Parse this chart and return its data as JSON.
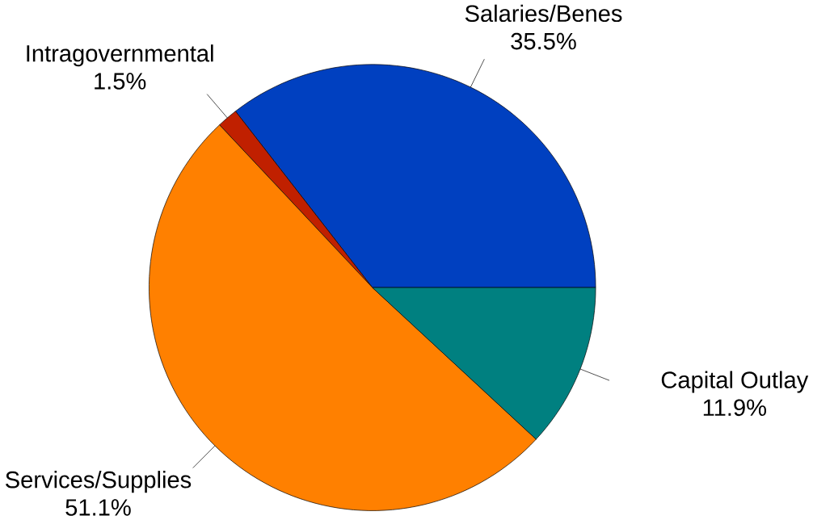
{
  "chart_data": {
    "type": "pie",
    "categories": [
      "Salaries/Benes",
      "Intragovernmental",
      "Services/Supplies",
      "Capital Outlay"
    ],
    "values": [
      35.5,
      1.5,
      51.1,
      11.9
    ],
    "value_labels": [
      "35.5%",
      "1.5%",
      "51.1%",
      "11.9%"
    ],
    "colors": [
      "#0040c0",
      "#c02000",
      "#ff8000",
      "#008080"
    ]
  }
}
